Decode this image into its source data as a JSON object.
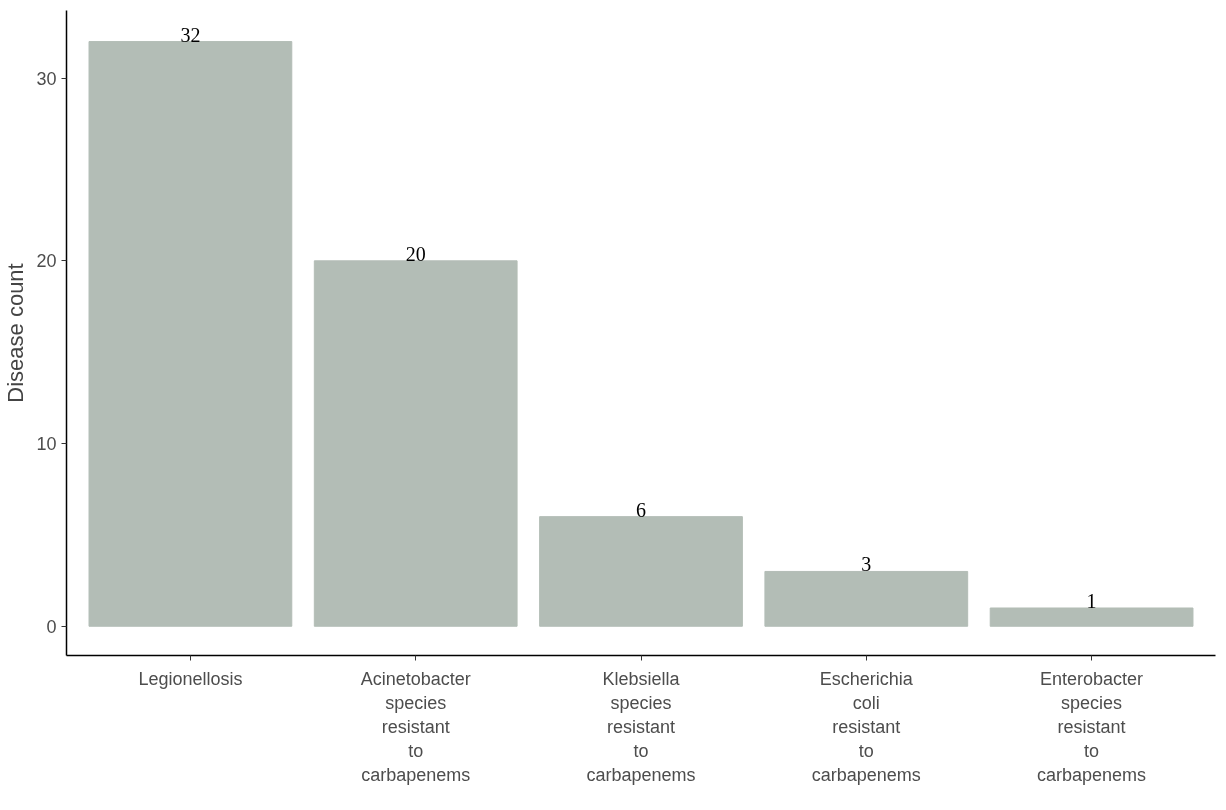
{
  "chart_data": {
    "type": "bar",
    "ylabel": "Disease count",
    "categories": [
      "Legionellosis",
      "Acinetobacter species resistant to carbapenems",
      "Klebsiella species resistant to carbapenems",
      "Escherichia coli resistant to carbapenems",
      "Enterobacter species resistant to carbapenems"
    ],
    "values": [
      32,
      20,
      6,
      3,
      1
    ],
    "color": "#b3bdb6",
    "ylim": [
      -1.6,
      33.7
    ],
    "yticks": [
      0,
      10,
      20,
      30
    ],
    "grid": false,
    "data_labels": true
  }
}
